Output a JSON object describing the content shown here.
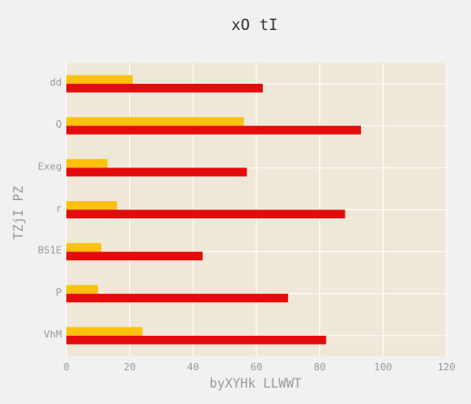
{
  "chart_data": {
    "type": "bar",
    "orientation": "horizontal",
    "title": "xO tI",
    "xlabel": "byXYHk LLWWT",
    "ylabel": "TZjI PZ",
    "categories": [
      "dd",
      "Q",
      "Exeg",
      "r",
      "BS1E",
      "P",
      "VhM"
    ],
    "series": [
      {
        "values": [
          21,
          56,
          13,
          16,
          11,
          10,
          24
        ],
        "color": "#fbc10b"
      },
      {
        "values": [
          62,
          93,
          57,
          88,
          43,
          70,
          82
        ],
        "color": "#e30b0b"
      }
    ],
    "xlim": [
      0,
      120
    ],
    "xticks": [
      0,
      20,
      40,
      60,
      80,
      100,
      120
    ],
    "grid": true,
    "plot_background": "#efe8d8",
    "grid_color": "#ffffff"
  }
}
